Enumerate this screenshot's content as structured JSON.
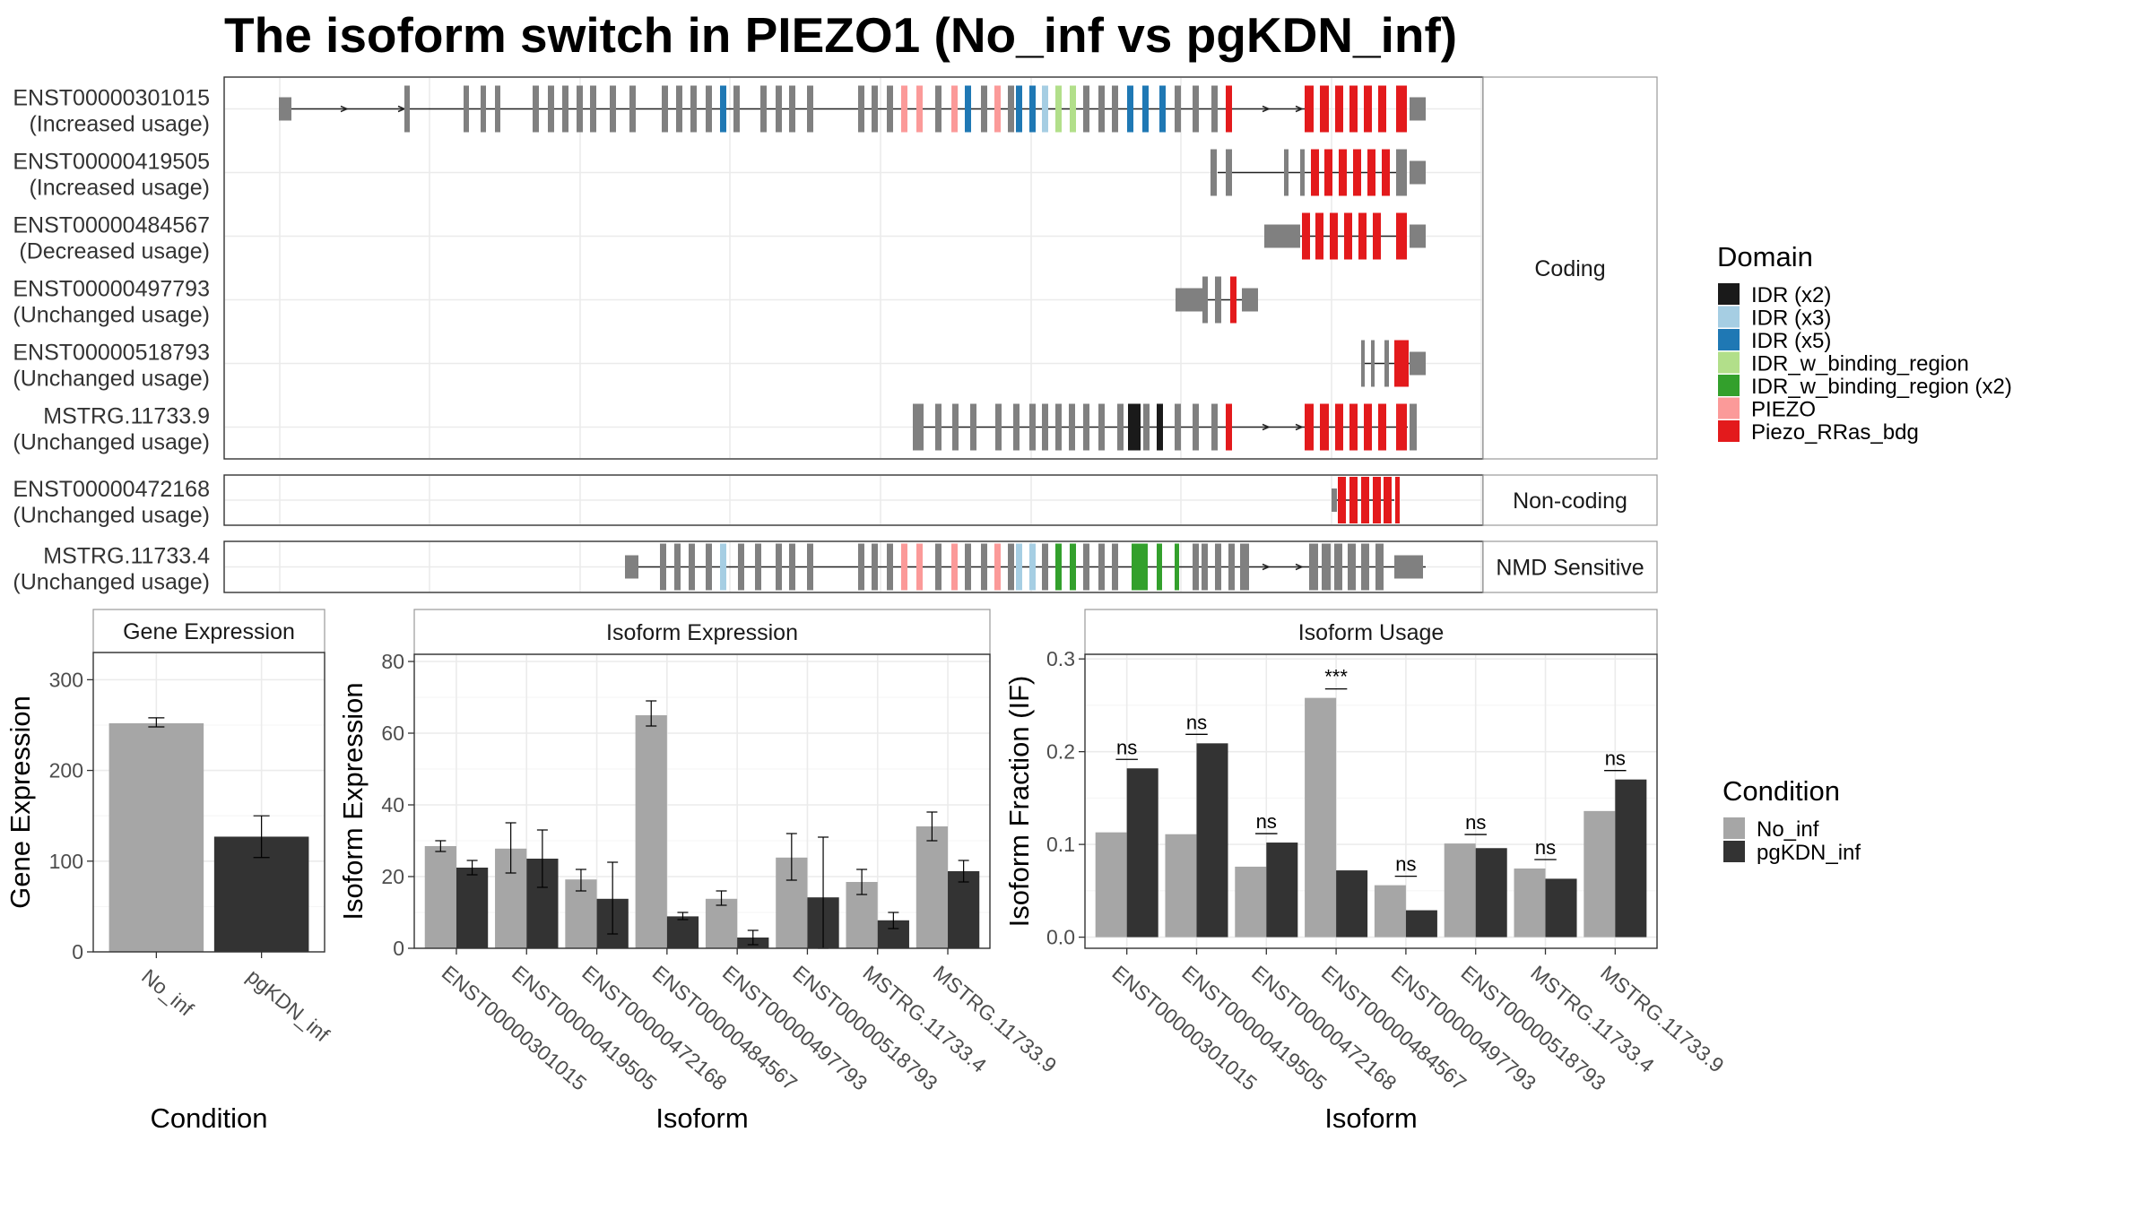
{
  "title": "The isoform switch in PIEZO1 (No_inf vs pgKDN_inf)",
  "colors": {
    "no_inf": "#a6a6a6",
    "pgkdn_inf": "#333333",
    "exon_default": "#808080",
    "domains": {
      "IDR (x2)": "#1a1a1a",
      "IDR (x3)": "#a6cee3",
      "IDR (x5)": "#1f78b4",
      "IDR_w_binding_region": "#b2df8a",
      "IDR_w_binding_region (x2)": "#33a02c",
      "PIEZO": "#fb9a99",
      "Piezo_RRas_bdg": "#e31a1c"
    }
  },
  "structure": {
    "groups": [
      {
        "label": "Coding",
        "isoforms": [
          {
            "id": "ENST00000301015",
            "usage": "(Increased usage)"
          },
          {
            "id": "ENST00000419505",
            "usage": "(Increased usage)"
          },
          {
            "id": "ENST00000484567",
            "usage": "(Decreased usage)"
          },
          {
            "id": "ENST00000497793",
            "usage": "(Unchanged usage)"
          },
          {
            "id": "ENST00000518793",
            "usage": "(Unchanged usage)"
          },
          {
            "id": "MSTRG.11733.9",
            "usage": "(Unchanged usage)"
          }
        ]
      },
      {
        "label": "Non-coding",
        "isoforms": [
          {
            "id": "ENST00000472168",
            "usage": "(Unchanged usage)"
          }
        ]
      },
      {
        "label": "NMD Sensitive",
        "isoforms": [
          {
            "id": "MSTRG.11733.4",
            "usage": "(Unchanged usage)"
          }
        ]
      }
    ]
  },
  "legend_domain": {
    "title": "Domain",
    "items": [
      "IDR (x2)",
      "IDR (x3)",
      "IDR (x5)",
      "IDR_w_binding_region",
      "IDR_w_binding_region (x2)",
      "PIEZO",
      "Piezo_RRas_bdg"
    ]
  },
  "legend_condition": {
    "title": "Condition",
    "items": [
      "No_inf",
      "pgKDN_inf"
    ]
  },
  "chart_data": [
    {
      "type": "bar",
      "title": "Gene Expression",
      "xlabel": "Condition",
      "ylabel": "Gene Expression",
      "ylim": [
        0,
        330
      ],
      "yticks": [
        0,
        100,
        200,
        300
      ],
      "categories": [
        "No_inf",
        "pgKDN_inf"
      ],
      "values": [
        252,
        127
      ],
      "errors": [
        [
          248,
          258
        ],
        [
          104,
          150
        ]
      ]
    },
    {
      "type": "bar",
      "title": "Isoform Expression",
      "xlabel": "Isoform",
      "ylabel": "Isoform Expression",
      "ylim": [
        0,
        82
      ],
      "yticks": [
        0,
        20,
        40,
        60,
        80
      ],
      "categories": [
        "ENST00000301015",
        "ENST00000419505",
        "ENST00000472168",
        "ENST00000484567",
        "ENST00000497793",
        "ENST00000518793",
        "MSTRG.11733.4",
        "MSTRG.11733.9"
      ],
      "series": [
        {
          "name": "No_inf",
          "values": [
            28.5,
            27.8,
            19.2,
            65.0,
            13.8,
            25.3,
            18.5,
            34.0
          ],
          "errors": [
            [
              27,
              30
            ],
            [
              21,
              35
            ],
            [
              16,
              22
            ],
            [
              62,
              69
            ],
            [
              12,
              16
            ],
            [
              19,
              32
            ],
            [
              15,
              22
            ],
            [
              30,
              38
            ]
          ]
        },
        {
          "name": "pgKDN_inf",
          "values": [
            22.5,
            25.0,
            13.8,
            8.9,
            3.0,
            14.2,
            7.8,
            21.5
          ],
          "errors": [
            [
              20.5,
              24.5
            ],
            [
              17,
              33
            ],
            [
              4,
              24
            ],
            [
              8,
              10
            ],
            [
              1,
              5
            ],
            [
              0,
              31
            ],
            [
              5.5,
              10
            ],
            [
              18.5,
              24.5
            ]
          ]
        }
      ]
    },
    {
      "type": "bar",
      "title": "Isoform Usage",
      "xlabel": "Isoform",
      "ylabel": "Isoform Fraction (IF)",
      "ylim": [
        -0.012,
        0.305
      ],
      "yticks": [
        0.0,
        0.1,
        0.2,
        0.3
      ],
      "ytick_labels": [
        "0.0",
        "0.1",
        "0.2",
        "0.3"
      ],
      "categories": [
        "ENST00000301015",
        "ENST00000419505",
        "ENST00000472168",
        "ENST00000484567",
        "ENST00000497793",
        "ENST00000518793",
        "MSTRG.11733.4",
        "MSTRG.11733.9"
      ],
      "series": [
        {
          "name": "No_inf",
          "values": [
            0.113,
            0.111,
            0.076,
            0.258,
            0.056,
            0.101,
            0.074,
            0.136
          ]
        },
        {
          "name": "pgKDN_inf",
          "values": [
            0.182,
            0.209,
            0.102,
            0.072,
            0.029,
            0.096,
            0.063,
            0.17
          ]
        }
      ],
      "significance": [
        "ns",
        "ns",
        "ns",
        "***",
        "ns",
        "ns",
        "ns",
        "ns"
      ]
    }
  ]
}
